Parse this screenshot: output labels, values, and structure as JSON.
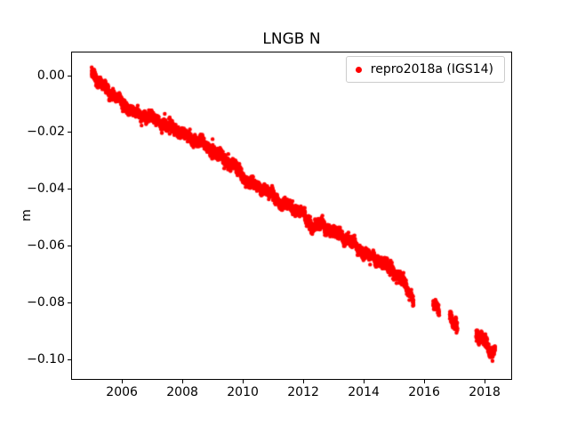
{
  "chart_data": {
    "type": "scatter",
    "title": "LNGB N",
    "xlabel": "",
    "ylabel": "m",
    "xlim": [
      2004.32,
      2018.91
    ],
    "ylim": [
      -0.1072,
      0.0083
    ],
    "grid": false,
    "xticks": [
      {
        "v": 2006,
        "label": "2006"
      },
      {
        "v": 2008,
        "label": "2008"
      },
      {
        "v": 2010,
        "label": "2010"
      },
      {
        "v": 2012,
        "label": "2012"
      },
      {
        "v": 2014,
        "label": "2014"
      },
      {
        "v": 2016,
        "label": "2016"
      },
      {
        "v": 2018,
        "label": "2018"
      }
    ],
    "yticks": [
      {
        "v": 0.0,
        "label": "0.00"
      },
      {
        "v": -0.02,
        "label": "−0.02"
      },
      {
        "v": -0.04,
        "label": "−0.04"
      },
      {
        "v": -0.06,
        "label": "−0.06"
      },
      {
        "v": -0.08,
        "label": "−0.08"
      },
      {
        "v": -0.1,
        "label": "−0.10"
      }
    ],
    "legend": {
      "label": "repro2018a (IGS14)",
      "location": "upper right",
      "frame": true
    },
    "series": [
      {
        "name": "repro2018a (IGS14)",
        "color": "#ff0000",
        "marker": ".",
        "marker_radius_px": 2.2,
        "samples_per_year": 365,
        "noise_std_m": 0.0009,
        "wiggle": [
          {
            "amp": 0.0006,
            "period": 0.55,
            "phase": 0.4
          },
          {
            "amp": 0.0005,
            "period": 0.21,
            "phase": 1.7
          }
        ],
        "coverage": [
          [
            2005.0,
            2015.65
          ],
          [
            2016.3,
            2016.5
          ],
          [
            2016.85,
            2017.1
          ],
          [
            2017.72,
            2018.35
          ]
        ],
        "outliers": [
          [
            2009.0,
            -0.0225
          ]
        ],
        "sampled_points": [
          [
            2005.0,
            0.0015
          ],
          [
            2005.3,
            -0.003
          ],
          [
            2005.6,
            -0.006
          ],
          [
            2005.8,
            -0.0075
          ],
          [
            2006.0,
            -0.01
          ],
          [
            2006.3,
            -0.012
          ],
          [
            2006.6,
            -0.0145
          ],
          [
            2006.9,
            -0.0145
          ],
          [
            2007.2,
            -0.016
          ],
          [
            2007.5,
            -0.018
          ],
          [
            2007.8,
            -0.019
          ],
          [
            2008.0,
            -0.0205
          ],
          [
            2008.3,
            -0.0225
          ],
          [
            2008.6,
            -0.0235
          ],
          [
            2009.0,
            -0.0265
          ],
          [
            2009.3,
            -0.029
          ],
          [
            2009.6,
            -0.0305
          ],
          [
            2009.9,
            -0.034
          ],
          [
            2010.1,
            -0.037
          ],
          [
            2010.5,
            -0.039
          ],
          [
            2011.0,
            -0.042
          ],
          [
            2011.3,
            -0.0455
          ],
          [
            2011.6,
            -0.046
          ],
          [
            2012.0,
            -0.049
          ],
          [
            2012.25,
            -0.053
          ],
          [
            2012.6,
            -0.0525
          ],
          [
            2013.0,
            -0.055
          ],
          [
            2013.5,
            -0.058
          ],
          [
            2014.0,
            -0.0625
          ],
          [
            2014.5,
            -0.065
          ],
          [
            2015.0,
            -0.069
          ],
          [
            2015.3,
            -0.0725
          ],
          [
            2015.65,
            -0.079
          ],
          [
            2016.3,
            -0.0805
          ],
          [
            2016.5,
            -0.0835
          ],
          [
            2016.85,
            -0.085
          ],
          [
            2017.0,
            -0.088
          ],
          [
            2017.1,
            -0.089
          ],
          [
            2017.72,
            -0.0905
          ],
          [
            2017.9,
            -0.092
          ],
          [
            2018.0,
            -0.093
          ],
          [
            2018.1,
            -0.096
          ],
          [
            2018.2,
            -0.098
          ],
          [
            2018.3,
            -0.097
          ],
          [
            2018.35,
            -0.095
          ]
        ]
      }
    ]
  }
}
